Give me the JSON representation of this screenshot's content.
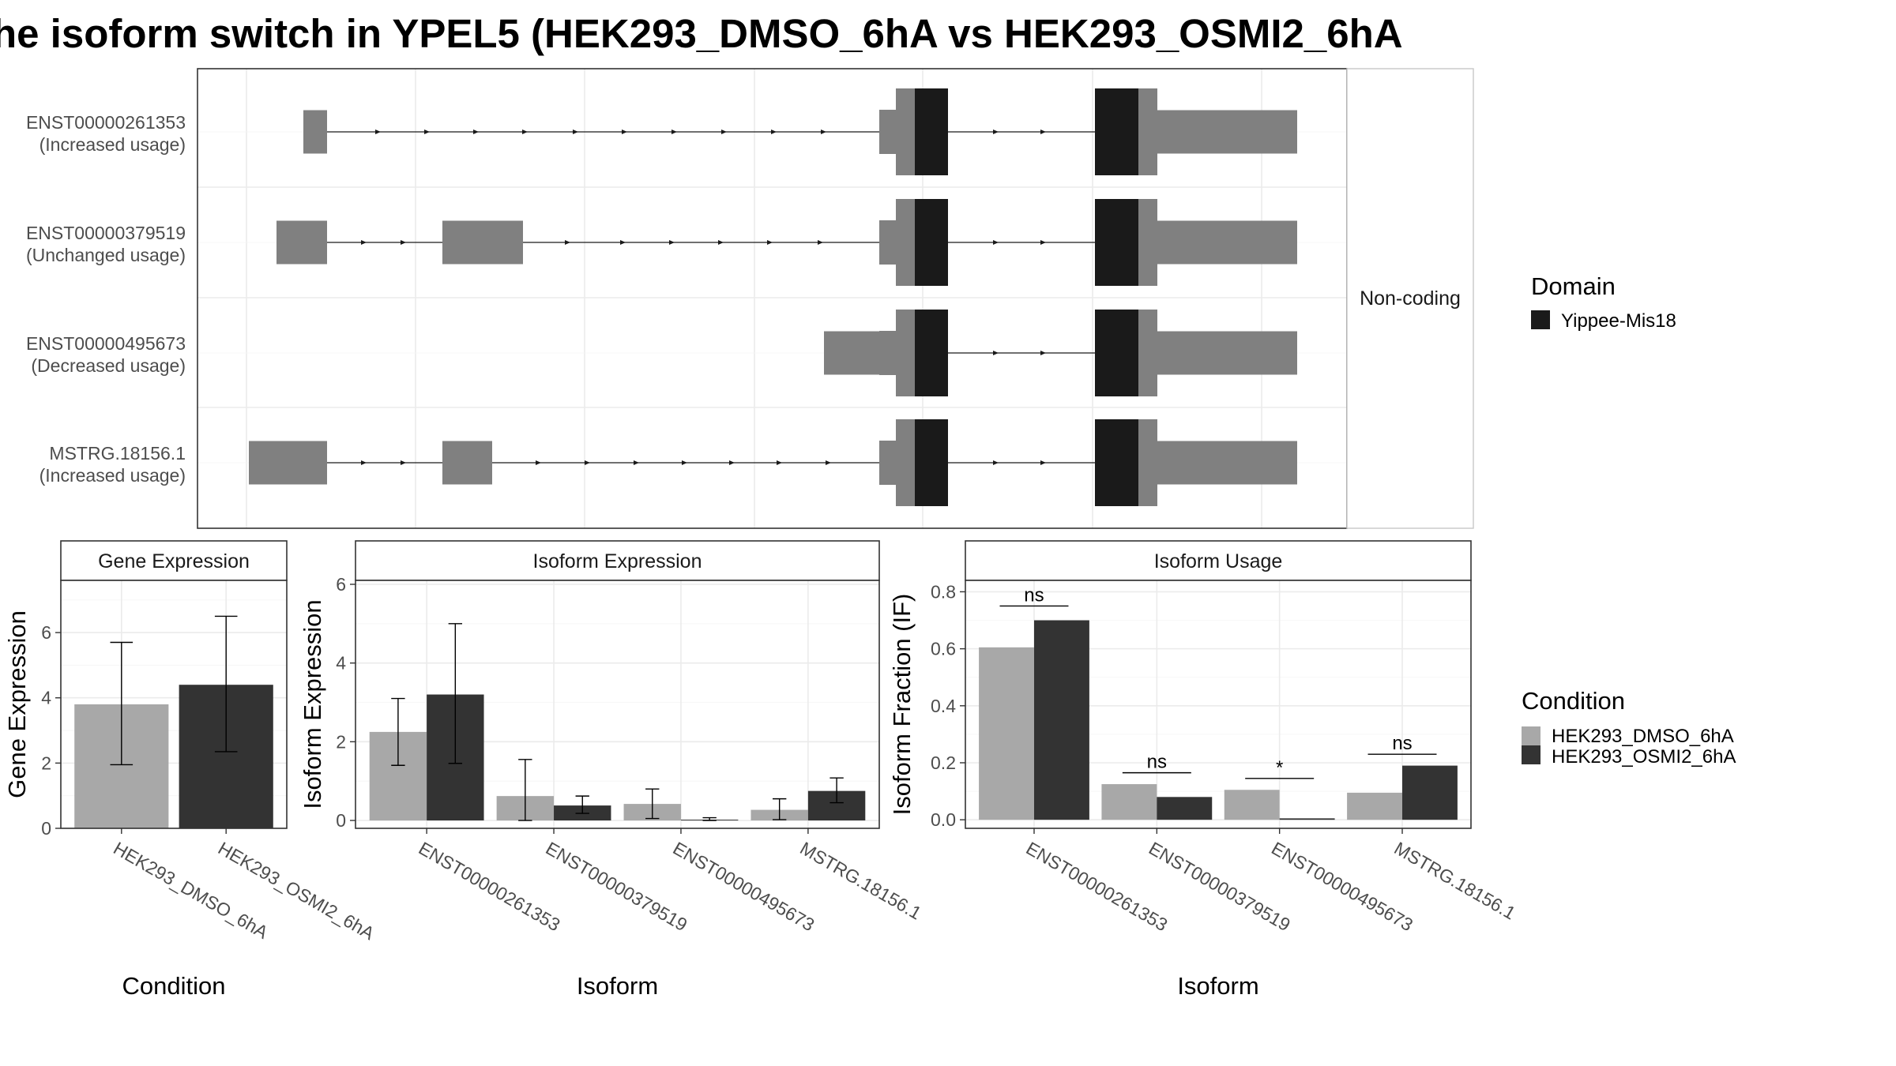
{
  "title": "he isoform switch in YPEL5 (HEK293_DMSO_6hA vs HEK293_OSMI2_6hA",
  "colors": {
    "dmso": "#a8a8a8",
    "osmi2": "#333333",
    "exon": "#808080",
    "domain": "#1a1a1a"
  },
  "chart_data": [
    {
      "type": "gene-structure",
      "name": "Transcript structures",
      "isoforms": [
        {
          "id": "ENST00000261353",
          "label": "ENST00000261353",
          "sublabel": "(Increased usage)"
        },
        {
          "id": "ENST00000379519",
          "label": "ENST00000379519",
          "sublabel": "(Unchanged usage)"
        },
        {
          "id": "ENST00000495673",
          "label": "ENST00000495673",
          "sublabel": "(Decreased usage)"
        },
        {
          "id": "MSTRG.18156.1",
          "label": "MSTRG.18156.1",
          "sublabel": "(Increased usage)"
        }
      ],
      "facet_label": "Non-coding",
      "legend": {
        "title": "Domain",
        "entries": [
          "Yippee-Mis18"
        ]
      }
    },
    {
      "type": "bar",
      "strip": "Gene Expression",
      "xlabel": "Condition",
      "ylabel": "Gene Expression",
      "ylim": [
        0,
        7.6
      ],
      "yticks": [
        "0",
        "2",
        "4",
        "6"
      ],
      "categories": [
        "HEK293_DMSO_6hA",
        "HEK293_OSMI2_6hA"
      ],
      "values": [
        3.8,
        4.4
      ],
      "err_low": [
        1.95,
        2.35
      ],
      "err_high": [
        5.7,
        6.5
      ]
    },
    {
      "type": "bar",
      "strip": "Isoform Expression",
      "xlabel": "Isoform",
      "ylabel": "Isoform Expression",
      "ylim": [
        -0.2,
        6.1
      ],
      "yticks": [
        "0",
        "2",
        "4",
        "6"
      ],
      "categories": [
        "ENST00000261353",
        "ENST00000379519",
        "ENST00000495673",
        "MSTRG.18156.1"
      ],
      "series": [
        {
          "name": "HEK293_DMSO_6hA",
          "values": [
            2.25,
            0.62,
            0.42,
            0.27
          ],
          "err_low": [
            1.4,
            0.0,
            0.05,
            0.02
          ],
          "err_high": [
            3.1,
            1.55,
            0.8,
            0.55
          ]
        },
        {
          "name": "HEK293_OSMI2_6hA",
          "values": [
            3.2,
            0.38,
            0.02,
            0.75
          ],
          "err_low": [
            1.45,
            0.18,
            0.0,
            0.45
          ],
          "err_high": [
            5.0,
            0.62,
            0.07,
            1.08
          ]
        }
      ]
    },
    {
      "type": "bar",
      "strip": "Isoform Usage",
      "xlabel": "Isoform",
      "ylabel": "Isoform Fraction (IF)",
      "ylim": [
        -0.03,
        0.84
      ],
      "yticks": [
        "0.0",
        "0.2",
        "0.4",
        "0.6",
        "0.8"
      ],
      "categories": [
        "ENST00000261353",
        "ENST00000379519",
        "ENST00000495673",
        "MSTRG.18156.1"
      ],
      "series": [
        {
          "name": "HEK293_DMSO_6hA",
          "values": [
            0.605,
            0.125,
            0.105,
            0.095
          ]
        },
        {
          "name": "HEK293_OSMI2_6hA",
          "values": [
            0.7,
            0.08,
            0.005,
            0.19
          ]
        }
      ],
      "significance": [
        {
          "label": "ns",
          "y": 0.75
        },
        {
          "label": "ns",
          "y": 0.165
        },
        {
          "label": "*",
          "y": 0.145
        },
        {
          "label": "ns",
          "y": 0.23
        }
      ],
      "legend": {
        "title": "Condition",
        "entries": [
          "HEK293_DMSO_6hA",
          "HEK293_OSMI2_6hA"
        ]
      }
    }
  ]
}
